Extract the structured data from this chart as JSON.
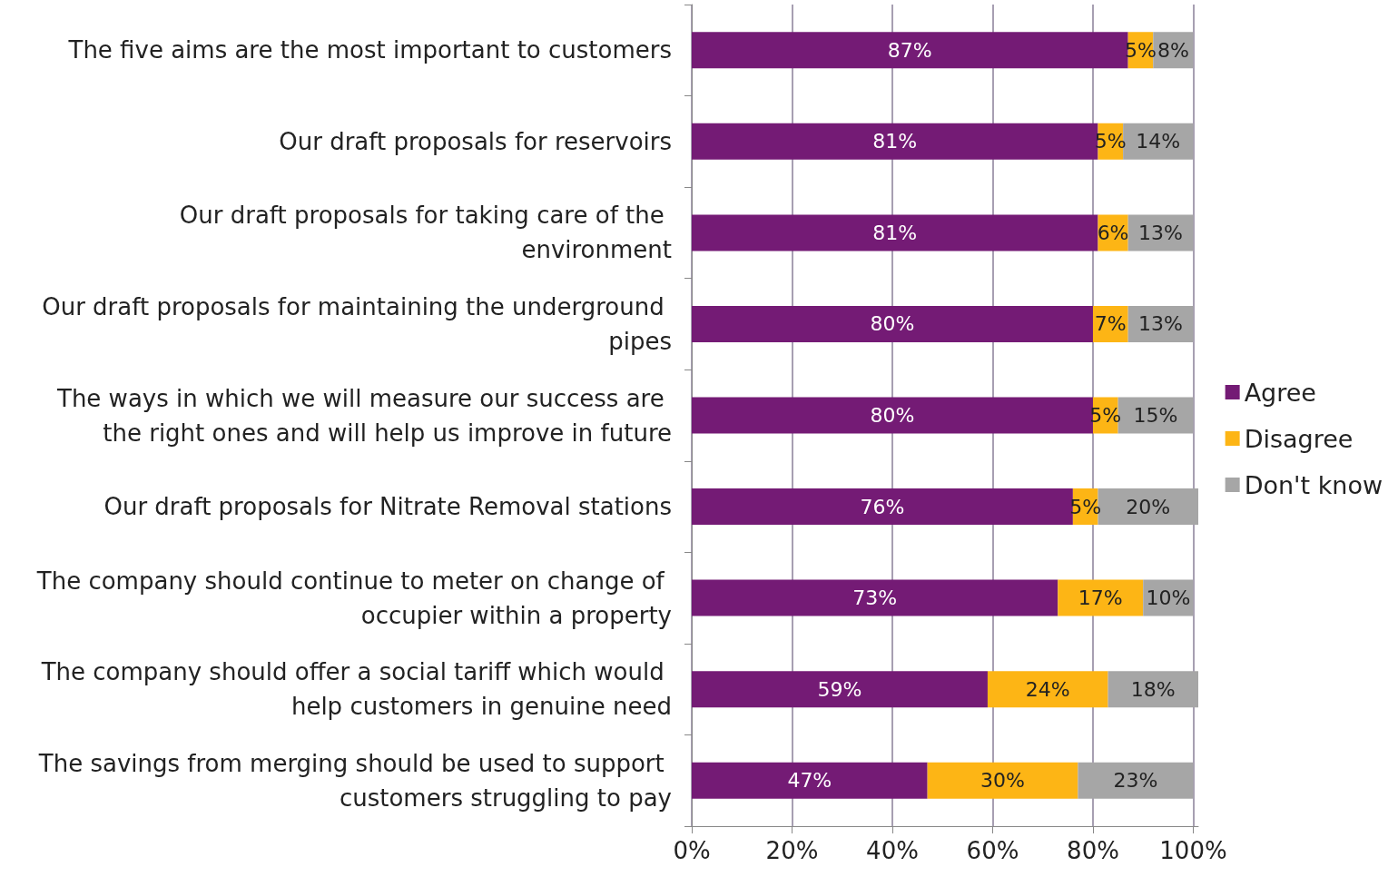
{
  "chart_data": {
    "type": "bar",
    "orientation": "horizontal",
    "stacked": true,
    "categories": [
      "The five aims are the most important to customers",
      "Our draft proposals for reservoirs",
      "Our draft proposals for taking care of the environment",
      "Our draft proposals for maintaining the underground pipes",
      "The ways in which we will measure our success are the right ones and will help us improve in future",
      "Our draft proposals for Nitrate Removal stations",
      "The company should continue to meter on change of occupier within a property",
      "The company should offer a social tariff which would help customers in genuine need",
      "The savings from merging should be used to support customers struggling to pay"
    ],
    "series": [
      {
        "name": "Agree",
        "color": "#741b75",
        "values": [
          87,
          81,
          81,
          80,
          80,
          76,
          73,
          59,
          47
        ]
      },
      {
        "name": "Disagree",
        "color": "#fdb515",
        "values": [
          5,
          5,
          6,
          7,
          5,
          5,
          17,
          24,
          30
        ]
      },
      {
        "name": "Don't know",
        "color": "#a6a6a6",
        "values": [
          8,
          14,
          13,
          13,
          15,
          20,
          10,
          18,
          23
        ]
      }
    ],
    "xlim": [
      0,
      101
    ],
    "xticks": [
      {
        "value": 0,
        "label": "0%"
      },
      {
        "value": 20,
        "label": "20%"
      },
      {
        "value": 40,
        "label": "40%"
      },
      {
        "value": 60,
        "label": "60%"
      },
      {
        "value": 80,
        "label": "80%"
      },
      {
        "value": 100,
        "label": "100%"
      }
    ],
    "value_labels": [
      [
        "87%",
        "81%",
        "81%",
        "80%",
        "80%",
        "76%",
        "73%",
        "59%",
        "47%"
      ],
      [
        "5%",
        "5%",
        "6%",
        "7%",
        "5%",
        "5%",
        "17%",
        "24%",
        "30%"
      ],
      [
        "8%",
        "14%",
        "13%",
        "13%",
        "15%",
        "20%",
        "10%",
        "18%",
        "23%"
      ]
    ],
    "grid": "x",
    "legend": "right"
  }
}
